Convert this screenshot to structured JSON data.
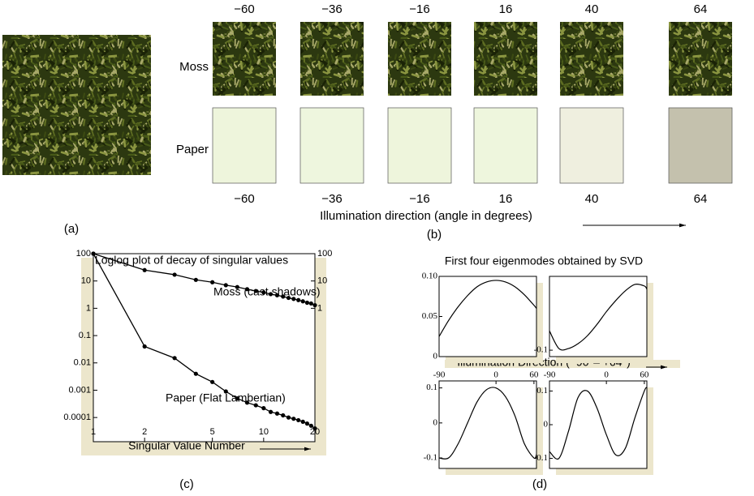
{
  "panel_a": {
    "label": "(a)"
  },
  "panel_b": {
    "label": "(b)",
    "rows": [
      "Moss",
      "Paper"
    ],
    "angles": [
      "−60",
      "−36",
      "−16",
      "16",
      "40",
      "64"
    ],
    "axis_label": "Illumination direction (angle in degrees)"
  },
  "panel_c": {
    "label": "(c)"
  },
  "panel_d": {
    "label": "(d)",
    "title": "First four eigenmodes obtained by SVD",
    "x_label": "Illumination Direction (−90°– +64°)"
  },
  "chart_data": [
    {
      "type": "line",
      "title": "Loglog plot of decay of singular values",
      "x_label": "Singular Value Number",
      "xlog": true,
      "ylog": true,
      "markers": true,
      "x": [
        1,
        2,
        3,
        4,
        5,
        6,
        7,
        8,
        9,
        10,
        11,
        12,
        13,
        14,
        15,
        16,
        17,
        18,
        19,
        20
      ],
      "series": [
        {
          "name": "Moss (cast shadows)",
          "color": "#000000",
          "values": [
            100,
            25,
            17,
            11,
            9,
            7,
            6,
            5,
            4.3,
            3.8,
            3.3,
            3,
            2.7,
            2.4,
            2.2,
            2,
            1.8,
            1.6,
            1.5,
            1.3
          ]
        },
        {
          "name": "Paper (Flat Lambertian)",
          "color": "#000000",
          "values": [
            100,
            0.04,
            0.015,
            0.004,
            0.002,
            0.0009,
            0.0005,
            0.00035,
            0.00028,
            0.00022,
            0.00016,
            0.00014,
            0.00012,
            0.0001,
            9e-05,
            8e-05,
            7e-05,
            6e-05,
            5e-05,
            4e-05
          ]
        }
      ],
      "xlim": [
        1,
        20
      ],
      "xticks": [
        1,
        2,
        5,
        10,
        20
      ],
      "ylim": [
        1.3e-05,
        100
      ],
      "yticks": [
        100,
        10,
        1,
        0.1,
        0.01,
        0.001,
        0.0001
      ],
      "y2lim": [
        1.3e-05,
        100
      ],
      "y2ticks": [
        100,
        10,
        1
      ]
    },
    {
      "type": "line",
      "x": [
        -90,
        -75,
        -60,
        -45,
        -30,
        -15,
        0,
        15,
        30,
        45,
        60,
        64
      ],
      "color": "#000000",
      "values": [
        0.025,
        0.045,
        0.062,
        0.076,
        0.087,
        0.093,
        0.095,
        0.093,
        0.087,
        0.077,
        0.064,
        0.06
      ],
      "xlim": [
        -90,
        64
      ],
      "ylim": [
        0,
        0.1
      ],
      "yticks": [
        0,
        0.05,
        {
          "value": 0.1,
          "label": "0.10"
        }
      ]
    },
    {
      "type": "line",
      "x": [
        -90,
        -75,
        -60,
        -45,
        -30,
        -15,
        0,
        15,
        30,
        45,
        60,
        64
      ],
      "color": "#000000",
      "values": [
        -0.04,
        -0.095,
        -0.095,
        -0.08,
        -0.055,
        -0.02,
        0.02,
        0.055,
        0.085,
        0.105,
        0.1,
        0.09
      ],
      "xlim": [
        -90,
        64
      ],
      "ylim": [
        -0.12,
        0.13
      ],
      "yticks": [
        -0.1
      ]
    },
    {
      "type": "line",
      "x": [
        -90,
        -75,
        -60,
        -45,
        -30,
        -15,
        0,
        15,
        30,
        45,
        60,
        64
      ],
      "color": "#000000",
      "values": [
        -0.1,
        -0.1,
        -0.06,
        0,
        0.06,
        0.095,
        0.1,
        0.075,
        0.02,
        -0.06,
        -0.1,
        -0.09
      ],
      "xlim": [
        -90,
        64
      ],
      "ylim": [
        -0.13,
        0.12
      ],
      "yticks": [
        0.1,
        0,
        -0.1
      ],
      "xticks": [
        -90,
        0,
        60
      ]
    },
    {
      "type": "line",
      "x": [
        -90,
        -75,
        -60,
        -45,
        -30,
        -15,
        0,
        15,
        30,
        45,
        60,
        64
      ],
      "color": "#000000",
      "values": [
        -0.08,
        -0.1,
        -0.02,
        0.08,
        0.1,
        0.05,
        -0.03,
        -0.09,
        -0.07,
        0.02,
        0.1,
        0.11
      ],
      "xlim": [
        -90,
        64
      ],
      "ylim": [
        -0.13,
        0.13
      ],
      "yticks": [
        0.1,
        0,
        -0.1
      ],
      "xticks": [
        -90,
        0,
        60
      ]
    }
  ]
}
